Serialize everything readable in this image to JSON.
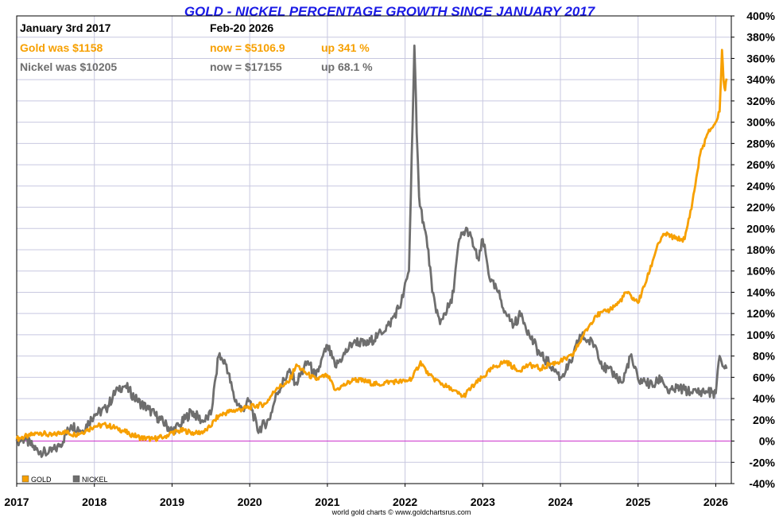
{
  "chart_data": {
    "type": "line",
    "title": "GOLD - NICKEL PERCENTAGE GROWTH SINCE JANUARY 2017",
    "info": {
      "start_label": "January 3rd 2017",
      "end_label": "Feb-20  2026",
      "gold_was": "Gold was $1158",
      "gold_now": "now = $5106.9",
      "gold_up": "up 341 %",
      "nickel_was": "Nickel was $10205",
      "nickel_now": "now = $17155",
      "nickel_up": "up 68.1 %"
    },
    "xlabel": "",
    "ylabel": "",
    "xlim": [
      2017.0,
      2026.2
    ],
    "ylim": [
      -40,
      400
    ],
    "x_ticks": [
      "2017",
      "2018",
      "2019",
      "2020",
      "2021",
      "2022",
      "2023",
      "2024",
      "2025",
      "2026"
    ],
    "y_ticks": [
      "400%",
      "380%",
      "360%",
      "340%",
      "320%",
      "300%",
      "280%",
      "260%",
      "240%",
      "220%",
      "200%",
      "180%",
      "160%",
      "140%",
      "120%",
      "100%",
      "80%",
      "60%",
      "40%",
      "20%",
      "0%",
      "-20%",
      "-40%"
    ],
    "grid": true,
    "zero_line_color": "#cc33cc",
    "legend": {
      "placement": "bottom-left",
      "entries": [
        "GOLD",
        "NICKEL"
      ]
    },
    "credit": "world gold charts © www.goldchartsrus.com",
    "series": [
      {
        "name": "GOLD",
        "color": "#f7a000",
        "x": [
          2017.0,
          2017.15,
          2017.3,
          2017.45,
          2017.6,
          2017.75,
          2017.9,
          2018.0,
          2018.15,
          2018.3,
          2018.45,
          2018.6,
          2018.75,
          2018.9,
          2019.0,
          2019.15,
          2019.3,
          2019.45,
          2019.6,
          2019.75,
          2019.9,
          2020.0,
          2020.2,
          2020.35,
          2020.5,
          2020.6,
          2020.7,
          2020.85,
          2021.0,
          2021.1,
          2021.2,
          2021.35,
          2021.5,
          2021.65,
          2021.8,
          2022.0,
          2022.1,
          2022.2,
          2022.3,
          2022.45,
          2022.6,
          2022.75,
          2022.85,
          2023.0,
          2023.15,
          2023.3,
          2023.45,
          2023.6,
          2023.75,
          2023.85,
          2024.0,
          2024.15,
          2024.3,
          2024.45,
          2024.6,
          2024.75,
          2024.85,
          2025.0,
          2025.15,
          2025.25,
          2025.35,
          2025.5,
          2025.6,
          2025.7,
          2025.8,
          2025.9,
          2026.0,
          2026.05,
          2026.08,
          2026.1,
          2026.12,
          2026.14
        ],
        "values": [
          2,
          5,
          8,
          5,
          9,
          6,
          10,
          14,
          15,
          12,
          7,
          3,
          2,
          4,
          8,
          10,
          7,
          10,
          24,
          28,
          30,
          32,
          35,
          50,
          55,
          72,
          65,
          58,
          62,
          48,
          52,
          58,
          56,
          53,
          56,
          56,
          60,
          75,
          62,
          55,
          48,
          42,
          50,
          60,
          70,
          75,
          66,
          72,
          68,
          72,
          75,
          80,
          100,
          118,
          122,
          130,
          140,
          130,
          160,
          185,
          195,
          190,
          190,
          225,
          270,
          290,
          300,
          310,
          368,
          340,
          330,
          341
        ]
      },
      {
        "name": "NICKEL",
        "color": "#6e6e6e",
        "x": [
          2017.0,
          2017.1,
          2017.25,
          2017.4,
          2017.55,
          2017.7,
          2017.85,
          2018.0,
          2018.15,
          2018.3,
          2018.4,
          2018.55,
          2018.7,
          2018.85,
          2019.0,
          2019.1,
          2019.25,
          2019.4,
          2019.5,
          2019.6,
          2019.7,
          2019.8,
          2019.9,
          2020.0,
          2020.1,
          2020.25,
          2020.35,
          2020.5,
          2020.6,
          2020.75,
          2020.85,
          2021.0,
          2021.1,
          2021.2,
          2021.35,
          2021.5,
          2021.65,
          2021.8,
          2021.95,
          2022.05,
          2022.12,
          2022.15,
          2022.18,
          2022.2,
          2022.25,
          2022.3,
          2022.35,
          2022.45,
          2022.5,
          2022.6,
          2022.7,
          2022.8,
          2022.9,
          2022.95,
          2023.0,
          2023.1,
          2023.2,
          2023.3,
          2023.4,
          2023.5,
          2023.6,
          2023.75,
          2023.9,
          2024.0,
          2024.15,
          2024.25,
          2024.35,
          2024.45,
          2024.55,
          2024.7,
          2024.8,
          2024.9,
          2025.0,
          2025.1,
          2025.2,
          2025.3,
          2025.4,
          2025.5,
          2025.6,
          2025.7,
          2025.8,
          2025.9,
          2026.0,
          2026.05,
          2026.1,
          2026.14
        ],
        "values": [
          0,
          2,
          -8,
          -12,
          -5,
          15,
          10,
          25,
          30,
          50,
          52,
          38,
          30,
          20,
          10,
          15,
          28,
          18,
          25,
          80,
          72,
          40,
          30,
          38,
          10,
          20,
          45,
          65,
          55,
          75,
          60,
          90,
          70,
          80,
          95,
          90,
          100,
          110,
          130,
          160,
          372,
          290,
          230,
          220,
          200,
          180,
          140,
          110,
          120,
          130,
          190,
          200,
          180,
          170,
          190,
          150,
          140,
          120,
          110,
          120,
          100,
          80,
          70,
          60,
          75,
          100,
          95,
          90,
          70,
          62,
          55,
          80,
          58,
          55,
          52,
          60,
          45,
          50,
          48,
          45,
          47,
          46,
          45,
          80,
          70,
          68
        ]
      }
    ]
  }
}
